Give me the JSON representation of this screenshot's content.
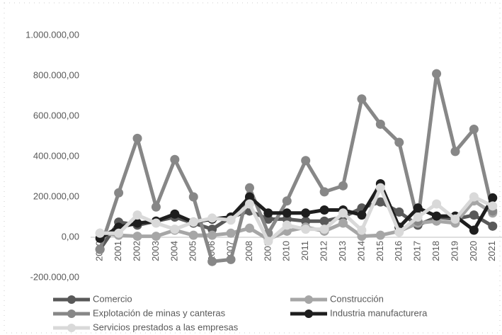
{
  "chart_data": {
    "type": "line",
    "categories": [
      "2000",
      "2001",
      "2002",
      "2003",
      "2004",
      "2005",
      "2006",
      "2007",
      "2008",
      "2009",
      "2010",
      "2011",
      "2012",
      "2013",
      "2014",
      "2015",
      "2016",
      "2017",
      "2018",
      "2019",
      "2020",
      "2021"
    ],
    "series": [
      {
        "name": "Comercio",
        "color": "#595959",
        "values": [
          -60000,
          75000,
          60000,
          80000,
          100000,
          70000,
          40000,
          100000,
          130000,
          90000,
          90000,
          80000,
          80000,
          100000,
          145000,
          175000,
          125000,
          60000,
          100000,
          90000,
          110000,
          55000
        ]
      },
      {
        "name": "Construcción",
        "color": "#a6a6a6",
        "values": [
          20000,
          10000,
          5000,
          5000,
          35000,
          10000,
          10000,
          20000,
          45000,
          -10000,
          30000,
          50000,
          30000,
          70000,
          5000,
          10000,
          30000,
          70000,
          80000,
          70000,
          180000,
          120000
        ]
      },
      {
        "name": "Explotación de minas y canteras",
        "color": "#878787",
        "values": [
          -60000,
          220000,
          490000,
          150000,
          385000,
          200000,
          -120000,
          -110000,
          245000,
          20000,
          180000,
          380000,
          225000,
          255000,
          685000,
          560000,
          470000,
          80000,
          810000,
          425000,
          535000,
          130000
        ]
      },
      {
        "name": "Industria manufacturera",
        "color": "#1e1e1e",
        "values": [
          -5000,
          50000,
          70000,
          80000,
          115000,
          75000,
          90000,
          100000,
          200000,
          120000,
          120000,
          120000,
          135000,
          135000,
          110000,
          265000,
          50000,
          145000,
          105000,
          105000,
          35000,
          195000
        ]
      },
      {
        "name": "Servicios prestados a las empresas",
        "color": "#d9d9d9",
        "values": [
          20000,
          20000,
          110000,
          70000,
          40000,
          75000,
          95000,
          85000,
          165000,
          -20000,
          60000,
          40000,
          40000,
          120000,
          35000,
          245000,
          25000,
          100000,
          165000,
          90000,
          200000,
          155000
        ]
      }
    ],
    "ylim": [
      -200000,
      1000000
    ],
    "yticks": [
      {
        "value": -200000,
        "label": "-200.000,00"
      },
      {
        "value": 0,
        "label": "0,00"
      },
      {
        "value": 200000,
        "label": "200.000,00"
      },
      {
        "value": 400000,
        "label": "400.000,00"
      },
      {
        "value": 600000,
        "label": "600.000,00"
      },
      {
        "value": 800000,
        "label": "800.000,00"
      },
      {
        "value": 1000000,
        "label": "1.000.000,00"
      }
    ],
    "grid": false
  }
}
